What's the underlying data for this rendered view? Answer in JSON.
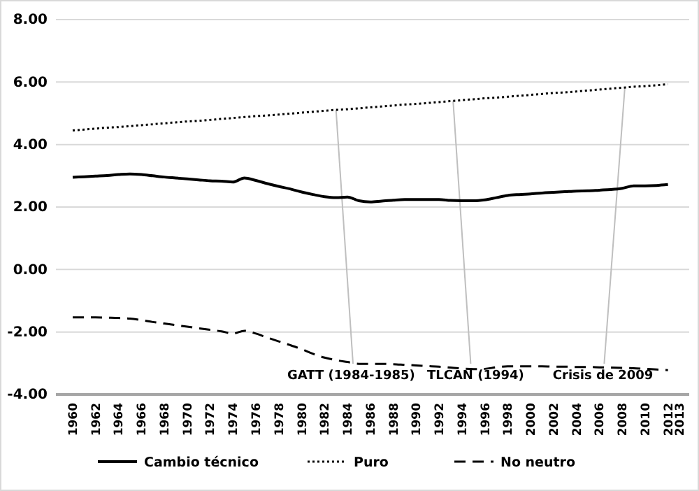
{
  "chart_data": {
    "type": "line",
    "categories": [
      "1960",
      null,
      "1962",
      null,
      "1964",
      null,
      "1966",
      null,
      "1968",
      null,
      "1970",
      null,
      "1972",
      null,
      "1974",
      null,
      "1976",
      null,
      "1978",
      null,
      "1980",
      null,
      "1982",
      null,
      "1984",
      null,
      "1986",
      null,
      "1988",
      null,
      "1990",
      null,
      "1992",
      null,
      "1994",
      null,
      "1996",
      null,
      "1998",
      null,
      "2000",
      null,
      "2002",
      null,
      "2004",
      null,
      "2006",
      null,
      "2008",
      null,
      "2010",
      null,
      "2012",
      "2013"
    ],
    "series": [
      {
        "name": "Cambio técnico",
        "color": "#000000",
        "line_style": "solid",
        "values": [
          2.95,
          2.97,
          2.99,
          3.01,
          3.04,
          3.06,
          3.04,
          3.0,
          2.96,
          2.93,
          2.9,
          2.87,
          2.84,
          2.83,
          2.8,
          2.93,
          2.85,
          2.75,
          2.66,
          2.58,
          2.48,
          2.4,
          2.33,
          2.3,
          2.32,
          2.2,
          2.16,
          2.19,
          2.22,
          2.24,
          2.24,
          2.24,
          2.24,
          2.21,
          2.2,
          2.2,
          2.23,
          2.3,
          2.37,
          2.4,
          2.42,
          2.45,
          2.47,
          2.49,
          2.51,
          2.52,
          2.54,
          2.56,
          2.6,
          2.68,
          2.68,
          2.69,
          2.72,
          null
        ]
      },
      {
        "name": "Puro",
        "color": "#000000",
        "line_style": "dotted",
        "values": [
          4.45,
          4.48,
          4.51,
          4.54,
          4.56,
          4.59,
          4.62,
          4.65,
          4.68,
          4.71,
          4.74,
          4.76,
          4.79,
          4.82,
          4.85,
          4.88,
          4.91,
          4.93,
          4.96,
          4.99,
          5.02,
          5.05,
          5.08,
          5.11,
          5.13,
          5.16,
          5.19,
          5.22,
          5.25,
          5.28,
          5.3,
          5.33,
          5.36,
          5.39,
          5.42,
          5.45,
          5.48,
          5.5,
          5.53,
          5.56,
          5.59,
          5.62,
          5.65,
          5.67,
          5.7,
          5.73,
          5.76,
          5.79,
          5.82,
          5.85,
          5.87,
          5.9,
          5.93,
          null
        ]
      },
      {
        "name": "No neutro",
        "color": "#000000",
        "line_style": "dashed",
        "values": [
          -1.53,
          -1.53,
          -1.53,
          -1.54,
          -1.55,
          -1.57,
          -1.62,
          -1.68,
          -1.73,
          -1.78,
          -1.83,
          -1.88,
          -1.93,
          -1.98,
          -2.05,
          -1.96,
          -2.05,
          -2.18,
          -2.3,
          -2.42,
          -2.55,
          -2.7,
          -2.82,
          -2.9,
          -2.96,
          -3.02,
          -3.02,
          -3.02,
          -3.03,
          -3.05,
          -3.07,
          -3.09,
          -3.11,
          -3.14,
          -3.17,
          -3.19,
          -3.18,
          -3.13,
          -3.1,
          -3.1,
          -3.1,
          -3.1,
          -3.11,
          -3.11,
          -3.12,
          -3.12,
          -3.13,
          -3.14,
          -3.15,
          -3.16,
          -3.18,
          -3.2,
          -3.22,
          null
        ]
      }
    ],
    "ylim": [
      -4,
      8
    ],
    "yticks": [
      {
        "value": -4,
        "label": "-4.00"
      },
      {
        "value": -2,
        "label": "-2.00"
      },
      {
        "value": 0,
        "label": "0.00"
      },
      {
        "value": 2,
        "label": "2.00"
      },
      {
        "value": 4,
        "label": "4.00"
      },
      {
        "value": 6,
        "label": "6.00"
      },
      {
        "value": 8,
        "label": "8.00"
      }
    ],
    "grid": "y",
    "legend": "bottom",
    "annotations": [
      "GATT (1984-1985)",
      "TLCAN (1994)",
      "Crisis de 2009"
    ]
  }
}
